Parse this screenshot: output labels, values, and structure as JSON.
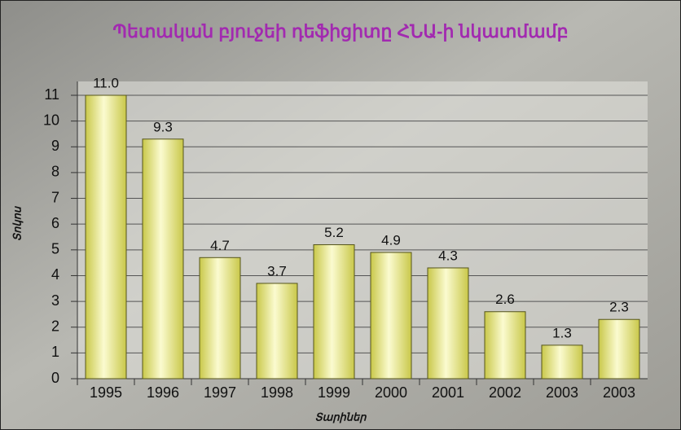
{
  "chart_data": {
    "type": "bar",
    "title": "Պետական բյուջեի դեֆիցիտը ՀՆԱ-ի նկատմամբ",
    "x_label": "Տարիներ",
    "y_label": "Տոկոս",
    "categories": [
      "1995",
      "1996",
      "1997",
      "1998",
      "1999",
      "2000",
      "2001",
      "2002",
      "2003",
      "2003"
    ],
    "values": [
      11,
      9.3,
      4.7,
      3.7,
      5.2,
      4.9,
      4.3,
      2.6,
      1.3,
      2.3
    ],
    "value_labels": [
      "11.0",
      "9.3",
      "4.7",
      "3.7",
      "5.2",
      "4.9",
      "4.3",
      "2.6",
      "1.3",
      "2.3"
    ],
    "color": "#c9c84a",
    "ylim": [
      0,
      11
    ],
    "yticks": [
      0,
      1,
      2,
      3,
      4,
      5,
      6,
      7,
      8,
      9,
      10,
      11
    ],
    "grid": true
  }
}
